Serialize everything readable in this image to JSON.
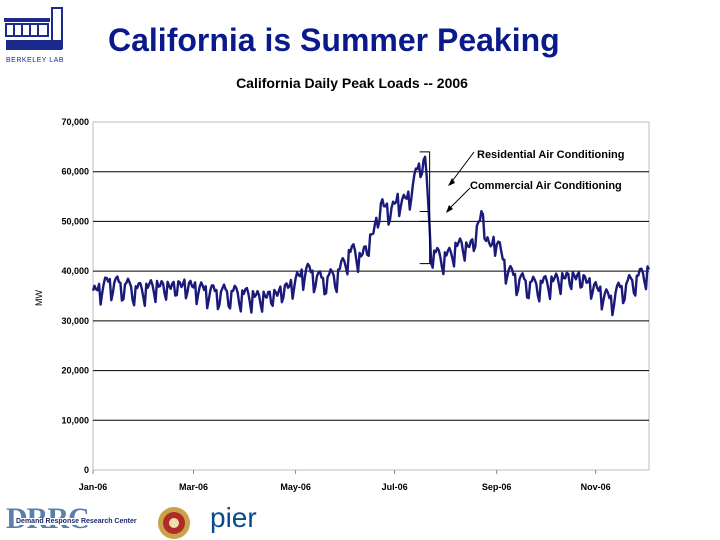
{
  "slide": {
    "title": "California is Summer Peaking"
  },
  "logos": {
    "top_left": "BERKELEY LAB",
    "bottom_left_letters": "DRRC",
    "bottom_left_sub": "Demand Response Research Center",
    "bottom_right": "pier"
  },
  "chart_data": {
    "type": "line",
    "title": "California Daily Peak Loads -- 2006",
    "xlabel": "",
    "ylabel": "MW",
    "xlim": [
      0,
      365
    ],
    "ylim": [
      0,
      70000
    ],
    "grid": "horizontal",
    "y_ticks": [
      {
        "value": 0,
        "label": "0"
      },
      {
        "value": 10000,
        "label": "10,000"
      },
      {
        "value": 20000,
        "label": "20,000"
      },
      {
        "value": 30000,
        "label": "30,000"
      },
      {
        "value": 40000,
        "label": "40,000"
      },
      {
        "value": 50000,
        "label": "50,000"
      },
      {
        "value": 60000,
        "label": "60,000"
      },
      {
        "value": 70000,
        "label": "70,000"
      }
    ],
    "x_ticks": [
      {
        "value": 0,
        "label": "Jan-06"
      },
      {
        "value": 66,
        "label": "Mar-06"
      },
      {
        "value": 133,
        "label": "May-06"
      },
      {
        "value": 198,
        "label": "Jul-06"
      },
      {
        "value": 265,
        "label": "Sep-06"
      },
      {
        "value": 330,
        "label": "Nov-06"
      }
    ],
    "series": [
      {
        "color": "#1a1a7a",
        "anchors": [
          [
            0,
            35000
          ],
          [
            10,
            37500
          ],
          [
            20,
            37000
          ],
          [
            30,
            36000
          ],
          [
            40,
            36500
          ],
          [
            50,
            36000
          ],
          [
            60,
            36500
          ],
          [
            70,
            36000
          ],
          [
            80,
            35500
          ],
          [
            90,
            35500
          ],
          [
            100,
            35000
          ],
          [
            110,
            34000
          ],
          [
            120,
            34500
          ],
          [
            130,
            36500
          ],
          [
            140,
            40000
          ],
          [
            150,
            38000
          ],
          [
            160,
            39000
          ],
          [
            170,
            44000
          ],
          [
            175,
            42000
          ],
          [
            180,
            44000
          ],
          [
            185,
            48000
          ],
          [
            190,
            53000
          ],
          [
            195,
            51000
          ],
          [
            200,
            54000
          ],
          [
            205,
            53500
          ],
          [
            210,
            57000
          ],
          [
            215,
            62000
          ],
          [
            218,
            62000
          ],
          [
            222,
            44000
          ],
          [
            228,
            42500
          ],
          [
            235,
            43000
          ],
          [
            240,
            45000
          ],
          [
            245,
            44000
          ],
          [
            250,
            45000
          ],
          [
            255,
            51000
          ],
          [
            260,
            44000
          ],
          [
            265,
            46000
          ],
          [
            270,
            41000
          ],
          [
            275,
            39000
          ],
          [
            280,
            38000
          ],
          [
            290,
            37000
          ],
          [
            300,
            37500
          ],
          [
            310,
            38000
          ],
          [
            320,
            38000
          ],
          [
            330,
            36000
          ],
          [
            340,
            34000
          ],
          [
            345,
            36000
          ],
          [
            355,
            38000
          ],
          [
            365,
            40000
          ]
        ],
        "amplitude": 1800,
        "period_days": 7
      }
    ],
    "annotations": [
      {
        "label": "Residential Air Conditioning",
        "bracket": [
          50000,
          64000
        ]
      },
      {
        "label": "Commercial Air Conditioning",
        "bracket": [
          41500,
          52000
        ]
      }
    ]
  }
}
